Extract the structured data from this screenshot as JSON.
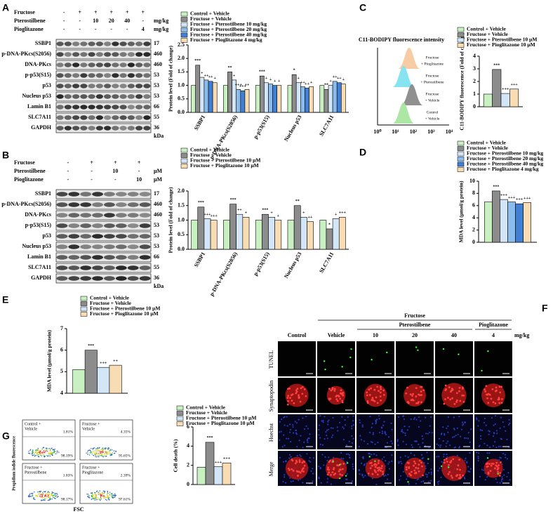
{
  "panel_labels": [
    "A",
    "B",
    "C",
    "D",
    "E",
    "F",
    "G"
  ],
  "blots": [
    {
      "treatments": [
        {
          "name": "Fructose",
          "lanes": [
            "-",
            "+",
            "+",
            "+",
            "+",
            "+"
          ]
        },
        {
          "name": "Pterostilbene",
          "lanes": [
            "-",
            "-",
            "10",
            "20",
            "40",
            "-"
          ]
        },
        {
          "name": "Pioglitazone",
          "lanes": [
            "-",
            "-",
            "-",
            "-",
            "-",
            "4"
          ]
        }
      ],
      "unit": "mg/kg",
      "proteins": [
        {
          "name": "SSBP1",
          "kda": 17
        },
        {
          "name": "p-DNA-PKcs(S2056)",
          "kda": 460
        },
        {
          "name": "DNA-PKcs",
          "kda": 460
        },
        {
          "name": "p-p53(S15)",
          "kda": 53
        },
        {
          "name": "p53",
          "kda": 53
        },
        {
          "name": "Nucleus p53",
          "kda": 53
        },
        {
          "name": "Lamin B1",
          "kda": 66
        },
        {
          "name": "SLC7A11",
          "kda": 55
        },
        {
          "name": "GAPDH",
          "kda": 36
        }
      ],
      "kda_label": "kDa"
    },
    {
      "treatments": [
        {
          "name": "Fructose",
          "lanes": [
            "-",
            "+",
            "+",
            "+"
          ]
        },
        {
          "name": "Pterostilbene",
          "lanes": [
            "-",
            "-",
            "10",
            "-"
          ]
        },
        {
          "name": "Pioglitazone",
          "lanes": [
            "-",
            "-",
            "-",
            "10"
          ]
        }
      ],
      "unit": "μM",
      "proteins": [
        {
          "name": "SSBP1",
          "kda": 17
        },
        {
          "name": "p-DNA-PKcs(S2056)",
          "kda": 460
        },
        {
          "name": "DNA-PKcs",
          "kda": 460
        },
        {
          "name": "p-p53(S15)",
          "kda": 53
        },
        {
          "name": "p53",
          "kda": 53
        },
        {
          "name": "Nucleus p53",
          "kda": 53
        },
        {
          "name": "Lamin B1",
          "kda": 66
        },
        {
          "name": "SLC7A11",
          "kda": 55
        },
        {
          "name": "GAPDH",
          "kda": 36
        }
      ],
      "kda_label": "kDa"
    }
  ],
  "histogram_panel": {
    "title": "C11-BODIPY fluorescence intensity",
    "x_ticks": [
      "10⁰",
      "10¹",
      "10²",
      "10³",
      "10⁴"
    ],
    "groups": [
      [
        "Fructose",
        "+ Pioglitazone"
      ],
      [
        "Fructose",
        "+ Pterostilbene"
      ],
      [
        "Fructose",
        "+ Vehicle"
      ],
      [
        "Control",
        "+ Vehicle"
      ]
    ],
    "colors": [
      "#f7c9a0",
      "#7fe3ef",
      "#8a8a8a",
      "#a8e6a0"
    ]
  },
  "flow_plots": {
    "y_label": "Propidium iodide fluorescence",
    "x_label": "FSC",
    "plots": [
      {
        "name": [
          "Control +",
          "Vehicle"
        ],
        "upper": "1.81%",
        "lower": "98.19%"
      },
      {
        "name": [
          "Fructose +",
          "Vehicle"
        ],
        "upper": "4.35%",
        "lower": "95.65%"
      },
      {
        "name": [
          "Fructose +",
          "Pterostilbene"
        ],
        "upper": "1.83%",
        "lower": "98.17%"
      },
      {
        "name": [
          "Fructose +",
          "Pioglitazone"
        ],
        "upper": "2.39%",
        "lower": "97.61%"
      }
    ]
  },
  "microscopy": {
    "group": "Fructose",
    "pterostilbene": "Pterostilbene",
    "pioglitazone": "Pioglitazone",
    "columns": [
      "Control",
      "Vehicle",
      "10",
      "20",
      "40",
      "4"
    ],
    "unit": "mg/kg",
    "rows": [
      "TUNEL",
      "Synaptopodin",
      "Hoechst",
      "Merge"
    ]
  },
  "chart_data": [
    {
      "type": "bar",
      "y_label": "Protein level (Fold of change)",
      "categories": [
        "SSBP1",
        "p-DNA-PKcs(S2056)",
        "p-p53(S15)",
        "Nucleus p53",
        "SLC7A11"
      ],
      "ylim": [
        0,
        2.5
      ],
      "yticks": [
        {
          "value": 0,
          "label": "0.0"
        },
        0.5,
        {
          "value": 1,
          "label": "1.0"
        },
        1.5,
        {
          "value": 2,
          "label": "2.0"
        },
        2.5
      ],
      "series": [
        {
          "name": "Control + Vehicle",
          "color": "#c8f0c0",
          "values": [
            1.0,
            1.0,
            1.0,
            1.0,
            1.0
          ],
          "sig": [
            null,
            null,
            null,
            null,
            null
          ]
        },
        {
          "name": "Fructose + Vehicle",
          "color": "#8c8c8c",
          "values": [
            1.75,
            1.5,
            1.35,
            1.4,
            0.85
          ],
          "sig": [
            "***",
            "**",
            "***",
            "*",
            "**"
          ]
        },
        {
          "name": "Fructose + Pterostilbene 10 mg/kg",
          "color": "#d2e6f8",
          "values": [
            1.3,
            1.2,
            1.1,
            1.1,
            1.0
          ],
          "sig": [
            "+",
            "+",
            "+",
            "+",
            "+"
          ]
        },
        {
          "name": "Fructose + Pterostilbene 20 mg/kg",
          "color": "#8cbcec",
          "values": [
            1.2,
            0.85,
            1.05,
            0.95,
            1.15
          ],
          "sig": [
            "++",
            "+++",
            "+",
            "++",
            "++"
          ]
        },
        {
          "name": "Fructose + Pterostilbene 40 mg/kg",
          "color": "#3f7fd6",
          "values": [
            1.15,
            0.8,
            1.0,
            0.9,
            1.1
          ],
          "sig": [
            "++",
            "+++",
            "+",
            "++",
            "++"
          ]
        },
        {
          "name": "Fructose + Pioglitazone 4 mg/kg",
          "color": "#f8dcb4",
          "values": [
            1.1,
            0.85,
            1.0,
            0.95,
            1.05
          ],
          "sig": [
            "+",
            "++",
            "+",
            "+",
            "+"
          ]
        }
      ]
    },
    {
      "type": "bar",
      "y_label": "C11-BODIPY fluorescence (Fold of change)",
      "ylim": [
        0,
        4
      ],
      "yticks": [
        0,
        1,
        2,
        3,
        4
      ],
      "series": [
        {
          "name": "Control + Vehicle",
          "color": "#c8f0c0",
          "values": [
            1.0
          ],
          "sig": [
            null
          ]
        },
        {
          "name": "Fructose + Vehicle",
          "color": "#8c8c8c",
          "values": [
            2.95
          ],
          "sig": [
            "***"
          ]
        },
        {
          "name": "Fructose + Pterostilbene 10 μM",
          "color": "#d2e6f8",
          "values": [
            1.05
          ],
          "sig": [
            "+++"
          ]
        },
        {
          "name": "Fructose + Pioglitazone 10 μM",
          "color": "#f8dcb4",
          "values": [
            1.4
          ],
          "sig": [
            "+++"
          ]
        }
      ]
    },
    {
      "type": "bar",
      "y_label": "Protein level (Fold of change)",
      "categories": [
        "SSBP1",
        "p-DNA-PKcs(S2056)",
        "p-p53(S15)",
        "Nucleus p53",
        "SLC7A11"
      ],
      "ylim": [
        0,
        2
      ],
      "yticks": [
        {
          "value": 0,
          "label": "0.0"
        },
        0.5,
        {
          "value": 1,
          "label": "1.0"
        },
        1.5,
        {
          "value": 2,
          "label": "2.0"
        }
      ],
      "series": [
        {
          "name": "Control + Vehicle",
          "color": "#c8f0c0",
          "values": [
            1.0,
            1.0,
            1.0,
            1.0,
            1.0
          ],
          "sig": [
            null,
            null,
            null,
            null,
            null
          ]
        },
        {
          "name": "Fructose + Vehicle",
          "color": "#8c8c8c",
          "values": [
            1.45,
            1.55,
            1.2,
            1.5,
            0.7
          ],
          "sig": [
            "***",
            "***",
            "***",
            "**",
            "*"
          ]
        },
        {
          "name": "Fructose + Pterostilbene 10 μM",
          "color": "#d2e6f8",
          "values": [
            1.05,
            1.2,
            1.1,
            1.1,
            1.05
          ],
          "sig": [
            "+++",
            "++",
            "+",
            "+",
            "+"
          ]
        },
        {
          "name": "Fructose + Pioglitazone 10 μM",
          "color": "#f8dcb4",
          "values": [
            1.0,
            1.1,
            1.0,
            0.95,
            1.1
          ],
          "sig": [
            "+++",
            "+",
            "+",
            "++",
            "+++"
          ]
        }
      ]
    },
    {
      "type": "bar",
      "y_label": "MDA level (μmol/g protein)",
      "ylim": [
        0,
        10
      ],
      "yticks": [
        0,
        2,
        4,
        6,
        8,
        10
      ],
      "series": [
        {
          "name": "Control + Vehicle",
          "color": "#c8f0c0",
          "values": [
            6.6
          ],
          "sig": [
            null
          ]
        },
        {
          "name": "Fructose + Vehicle",
          "color": "#8c8c8c",
          "values": [
            8.4
          ],
          "sig": [
            "***"
          ]
        },
        {
          "name": "Fructose + Pterostilbene 10 mg/kg",
          "color": "#d2e6f8",
          "values": [
            7.0
          ],
          "sig": [
            "+++"
          ]
        },
        {
          "name": "Fructose + Pterostilbene 20 mg/kg",
          "color": "#8cbcec",
          "values": [
            6.6
          ],
          "sig": [
            "+++"
          ]
        },
        {
          "name": "Fructose + Pterostilbene 40 mg/kg",
          "color": "#3f7fd6",
          "values": [
            6.3
          ],
          "sig": [
            "+++"
          ]
        },
        {
          "name": "Fructose + Pioglitazone 4 mg/kg",
          "color": "#f8dcb4",
          "values": [
            6.5
          ],
          "sig": [
            "+++"
          ]
        }
      ]
    },
    {
      "type": "bar",
      "y_label": "MDA level (μmol/g protein)",
      "ylim": [
        4,
        7
      ],
      "yticks": [
        4,
        5,
        6,
        7
      ],
      "series": [
        {
          "name": "Control + Vehicle",
          "color": "#c8f0c0",
          "values": [
            5.1
          ],
          "sig": [
            null
          ]
        },
        {
          "name": "Fructose + Vehicle",
          "color": "#8c8c8c",
          "values": [
            6.0
          ],
          "sig": [
            "***"
          ]
        },
        {
          "name": "Fructose + Pterostilbene 10 μM",
          "color": "#d2e6f8",
          "values": [
            5.2
          ],
          "sig": [
            "+++"
          ]
        },
        {
          "name": "Fructose + Pioglitazone 10 μM",
          "color": "#f8dcb4",
          "values": [
            5.3
          ],
          "sig": [
            "++"
          ]
        }
      ]
    },
    {
      "type": "bar",
      "y_label": "Cell death (%)",
      "ylim": [
        0,
        6
      ],
      "yticks": [
        0,
        2,
        4,
        6
      ],
      "series": [
        {
          "name": "Control + Vehicle",
          "color": "#c8f0c0",
          "values": [
            1.8
          ],
          "sig": [
            null
          ]
        },
        {
          "name": "Fructose + Vehicle",
          "color": "#8c8c8c",
          "values": [
            4.4
          ],
          "sig": [
            "***"
          ]
        },
        {
          "name": "Fructose + Pterostilbene 10 μM",
          "color": "#d2e6f8",
          "values": [
            1.85
          ],
          "sig": [
            "+++"
          ]
        },
        {
          "name": "Fructose + Pioglitazone 10 μM",
          "color": "#f8dcb4",
          "values": [
            2.25
          ],
          "sig": [
            "+++"
          ]
        }
      ]
    }
  ]
}
